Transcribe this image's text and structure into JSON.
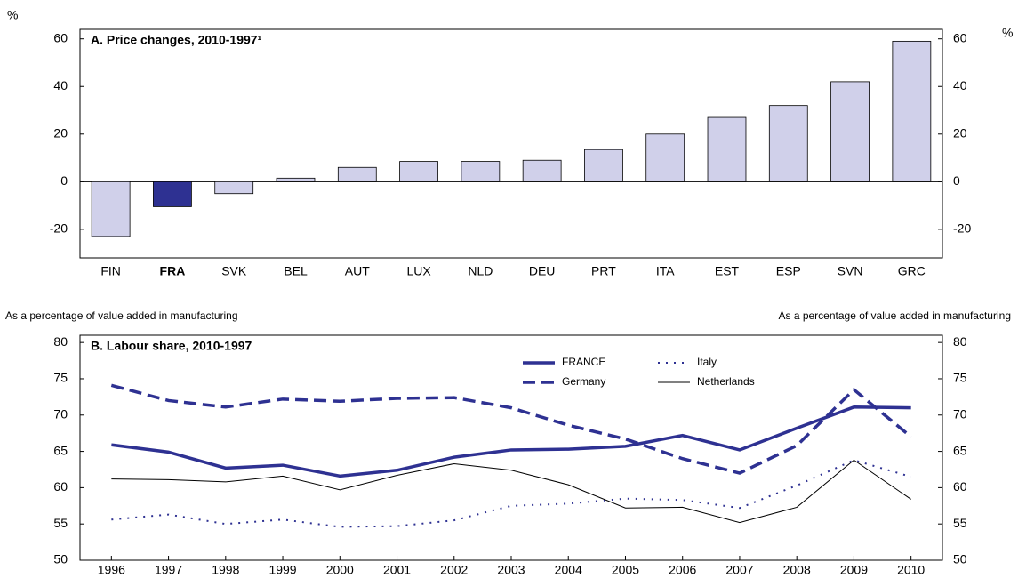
{
  "chart_data": [
    {
      "type": "bar",
      "title": "A. Price changes, 2010-1997¹",
      "y_unit": "%",
      "y2_unit": "%",
      "categories": [
        "FIN",
        "FRA",
        "SVK",
        "BEL",
        "AUT",
        "LUX",
        "NLD",
        "DEU",
        "PRT",
        "ITA",
        "EST",
        "ESP",
        "SVN",
        "GRC"
      ],
      "values": [
        -23,
        -10.5,
        -5,
        1.5,
        6,
        8.5,
        8.5,
        9,
        13.5,
        20,
        27,
        32,
        42,
        59
      ],
      "color": "#d0d0ea",
      "highlight_color": "#2e3192",
      "highlight_categories": [
        "FRA"
      ],
      "ylim": [
        -32,
        64
      ],
      "yticks": [
        -20,
        0,
        20,
        40,
        60
      ],
      "y2lim": [
        -32,
        64
      ],
      "y2ticks": [
        -20,
        0,
        20,
        40,
        60
      ]
    },
    {
      "type": "line",
      "title": "B. Labour share, 2010-1997",
      "y_label": "As a percentage of value added in manufacturing",
      "y2_label": "As a percentage of value added in manufacturing",
      "x": [
        1996,
        1997,
        1998,
        1999,
        2000,
        2001,
        2002,
        2003,
        2004,
        2005,
        2006,
        2007,
        2008,
        2009,
        2010
      ],
      "xlim": [
        1995.45,
        2010.55
      ],
      "xticks": [
        1996,
        1997,
        1998,
        1999,
        2000,
        2001,
        2002,
        2003,
        2004,
        2005,
        2006,
        2007,
        2008,
        2009,
        2010
      ],
      "ylim": [
        50,
        81
      ],
      "yticks": [
        50,
        55,
        60,
        65,
        70,
        75,
        80
      ],
      "y2lim": [
        50,
        81
      ],
      "y2ticks": [
        50,
        55,
        60,
        65,
        70,
        75,
        80
      ],
      "series": [
        {
          "name": "FRANCE",
          "color": "#2e3192",
          "style": "solid",
          "width": 3.5,
          "values": [
            65.9,
            64.9,
            62.7,
            63.1,
            61.6,
            62.4,
            64.2,
            65.2,
            65.3,
            65.7,
            67.2,
            65.2,
            68.2,
            71.1,
            71.0
          ]
        },
        {
          "name": "Germany",
          "color": "#2e3192",
          "style": "dashed",
          "width": 3.5,
          "values": [
            74.1,
            72.0,
            71.1,
            72.2,
            71.9,
            72.3,
            72.4,
            71.0,
            68.6,
            66.7,
            64.0,
            62.0,
            65.8,
            73.5,
            67.0
          ]
        },
        {
          "name": "Italy",
          "color": "#2e3192",
          "style": "dotted",
          "width": 2,
          "values": [
            55.6,
            56.3,
            55.0,
            55.6,
            54.6,
            54.7,
            55.5,
            57.5,
            57.8,
            58.5,
            58.3,
            57.2,
            60.3,
            63.8,
            61.5
          ]
        },
        {
          "name": "Netherlands",
          "color": "#000000",
          "style": "solid",
          "width": 1,
          "values": [
            61.2,
            61.1,
            60.8,
            61.6,
            59.7,
            61.7,
            63.3,
            62.4,
            60.4,
            57.2,
            57.3,
            55.2,
            57.3,
            63.8,
            58.4
          ]
        }
      ]
    }
  ]
}
